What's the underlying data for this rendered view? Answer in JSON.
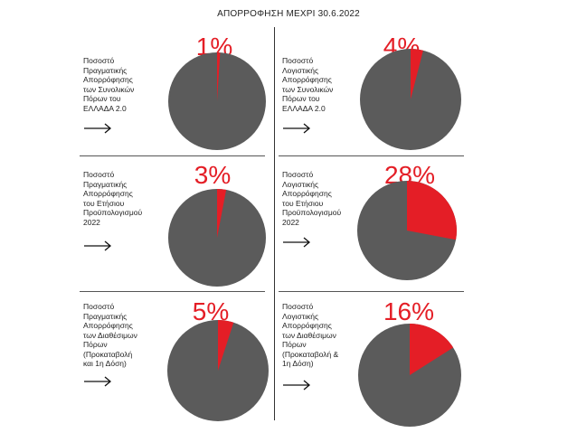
{
  "title": "ΑΠΟΡΡΟΦΗΣΗ ΜΕΧΡΙ 30.6.2022",
  "colors": {
    "rest": "#5b5b5b",
    "absorbed": "#e41e26",
    "text": "#222222"
  },
  "chart_data": [
    {
      "type": "pie",
      "label": "Ποσοστό\nΠραγματικής\nΑπορρόφησης\nτων Συνολικών\nΠόρων του\nΕΛΛΑΔΑ 2.0",
      "percent_label": "1%",
      "value": 1
    },
    {
      "type": "pie",
      "label": "Ποσοστό\nΛογιστικής\nΑπορρόφησης\nτων Συνολικών\nΠόρων του\nΕΛΛΑΔΑ 2.0",
      "percent_label": "4%",
      "value": 4
    },
    {
      "type": "pie",
      "label": "Ποσοστό\nΠραγματικής\nΑπορρόφησης\nτου Ετήσιου\nΠροϋπολογισμού\n2022",
      "percent_label": "3%",
      "value": 3
    },
    {
      "type": "pie",
      "label": "Ποσοστό\nΛογιστικής\nΑπορρόφησης\nτου Ετήσιου\nΠροϋπολογισμού\n2022",
      "percent_label": "28%",
      "value": 28
    },
    {
      "type": "pie",
      "label": "Ποσοστό\nΠραγματικής\nΑπορρόφησης\nτων Διαθέσιμων\nΠόρων\n(Προκαταβολή\nκαι 1η Δόση)",
      "percent_label": "5%",
      "value": 5
    },
    {
      "type": "pie",
      "label": "Ποσοστό\nΛογιστικής\nΑπορρόφησης\nτων Διαθέσιμων\nΠόρων\n(Προκαταβολή &\n1η Δόση)",
      "percent_label": "16%",
      "value": 16
    }
  ]
}
